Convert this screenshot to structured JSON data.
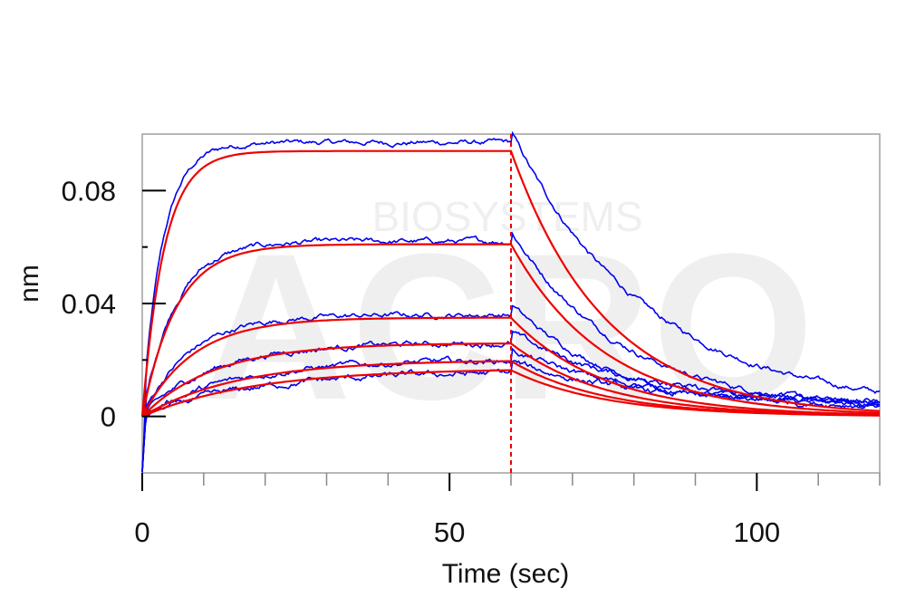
{
  "chart_data": {
    "type": "line",
    "xlabel": "Time (sec)",
    "ylabel": "nm",
    "xlim": [
      0,
      120
    ],
    "ylim": [
      -0.02,
      0.1
    ],
    "x_ticks": [
      0,
      50,
      100
    ],
    "x_tick_labels": [
      "0",
      "50",
      "100"
    ],
    "y_ticks": [
      0,
      0.04,
      0.08
    ],
    "y_tick_labels": [
      "0",
      "0.04",
      "0.08"
    ],
    "y_minor_ticks": [
      0.02,
      0.06
    ],
    "x_minor_tick_step": 10,
    "association_end": 60,
    "grid": false,
    "colors": {
      "raw": "#0000ee",
      "fit": "#ee0000",
      "frame": "#a0a0a0",
      "axis": "#000000"
    },
    "fit_curves": [
      {
        "plateau": 0.094,
        "k_on": 0.28,
        "k_off": 0.065
      },
      {
        "plateau": 0.061,
        "k_on": 0.18,
        "k_off": 0.065
      },
      {
        "plateau": 0.035,
        "k_on": 0.12,
        "k_off": 0.065
      },
      {
        "plateau": 0.026,
        "k_on": 0.085,
        "k_off": 0.065
      },
      {
        "plateau": 0.02,
        "k_on": 0.065,
        "k_off": 0.065
      },
      {
        "plateau": 0.017,
        "k_on": 0.055,
        "k_off": 0.065
      }
    ],
    "raw_series": [
      {
        "plateau": 0.097,
        "k_on": 0.3,
        "k_off": 0.045,
        "noise": 0.0012,
        "end_offset": 0.002
      },
      {
        "plateau": 0.062,
        "k_on": 0.19,
        "k_off": 0.055,
        "noise": 0.0012,
        "end_offset": 0.002
      },
      {
        "plateau": 0.036,
        "k_on": 0.13,
        "k_off": 0.06,
        "noise": 0.0012,
        "end_offset": 0.003
      },
      {
        "plateau": 0.026,
        "k_on": 0.09,
        "k_off": 0.05,
        "noise": 0.0013,
        "end_offset": 0.004
      },
      {
        "plateau": 0.02,
        "k_on": 0.07,
        "k_off": 0.05,
        "noise": 0.0013,
        "end_offset": 0.004
      },
      {
        "plateau": 0.016,
        "k_on": 0.055,
        "k_off": 0.045,
        "noise": 0.0014,
        "end_offset": 0.003
      }
    ]
  }
}
